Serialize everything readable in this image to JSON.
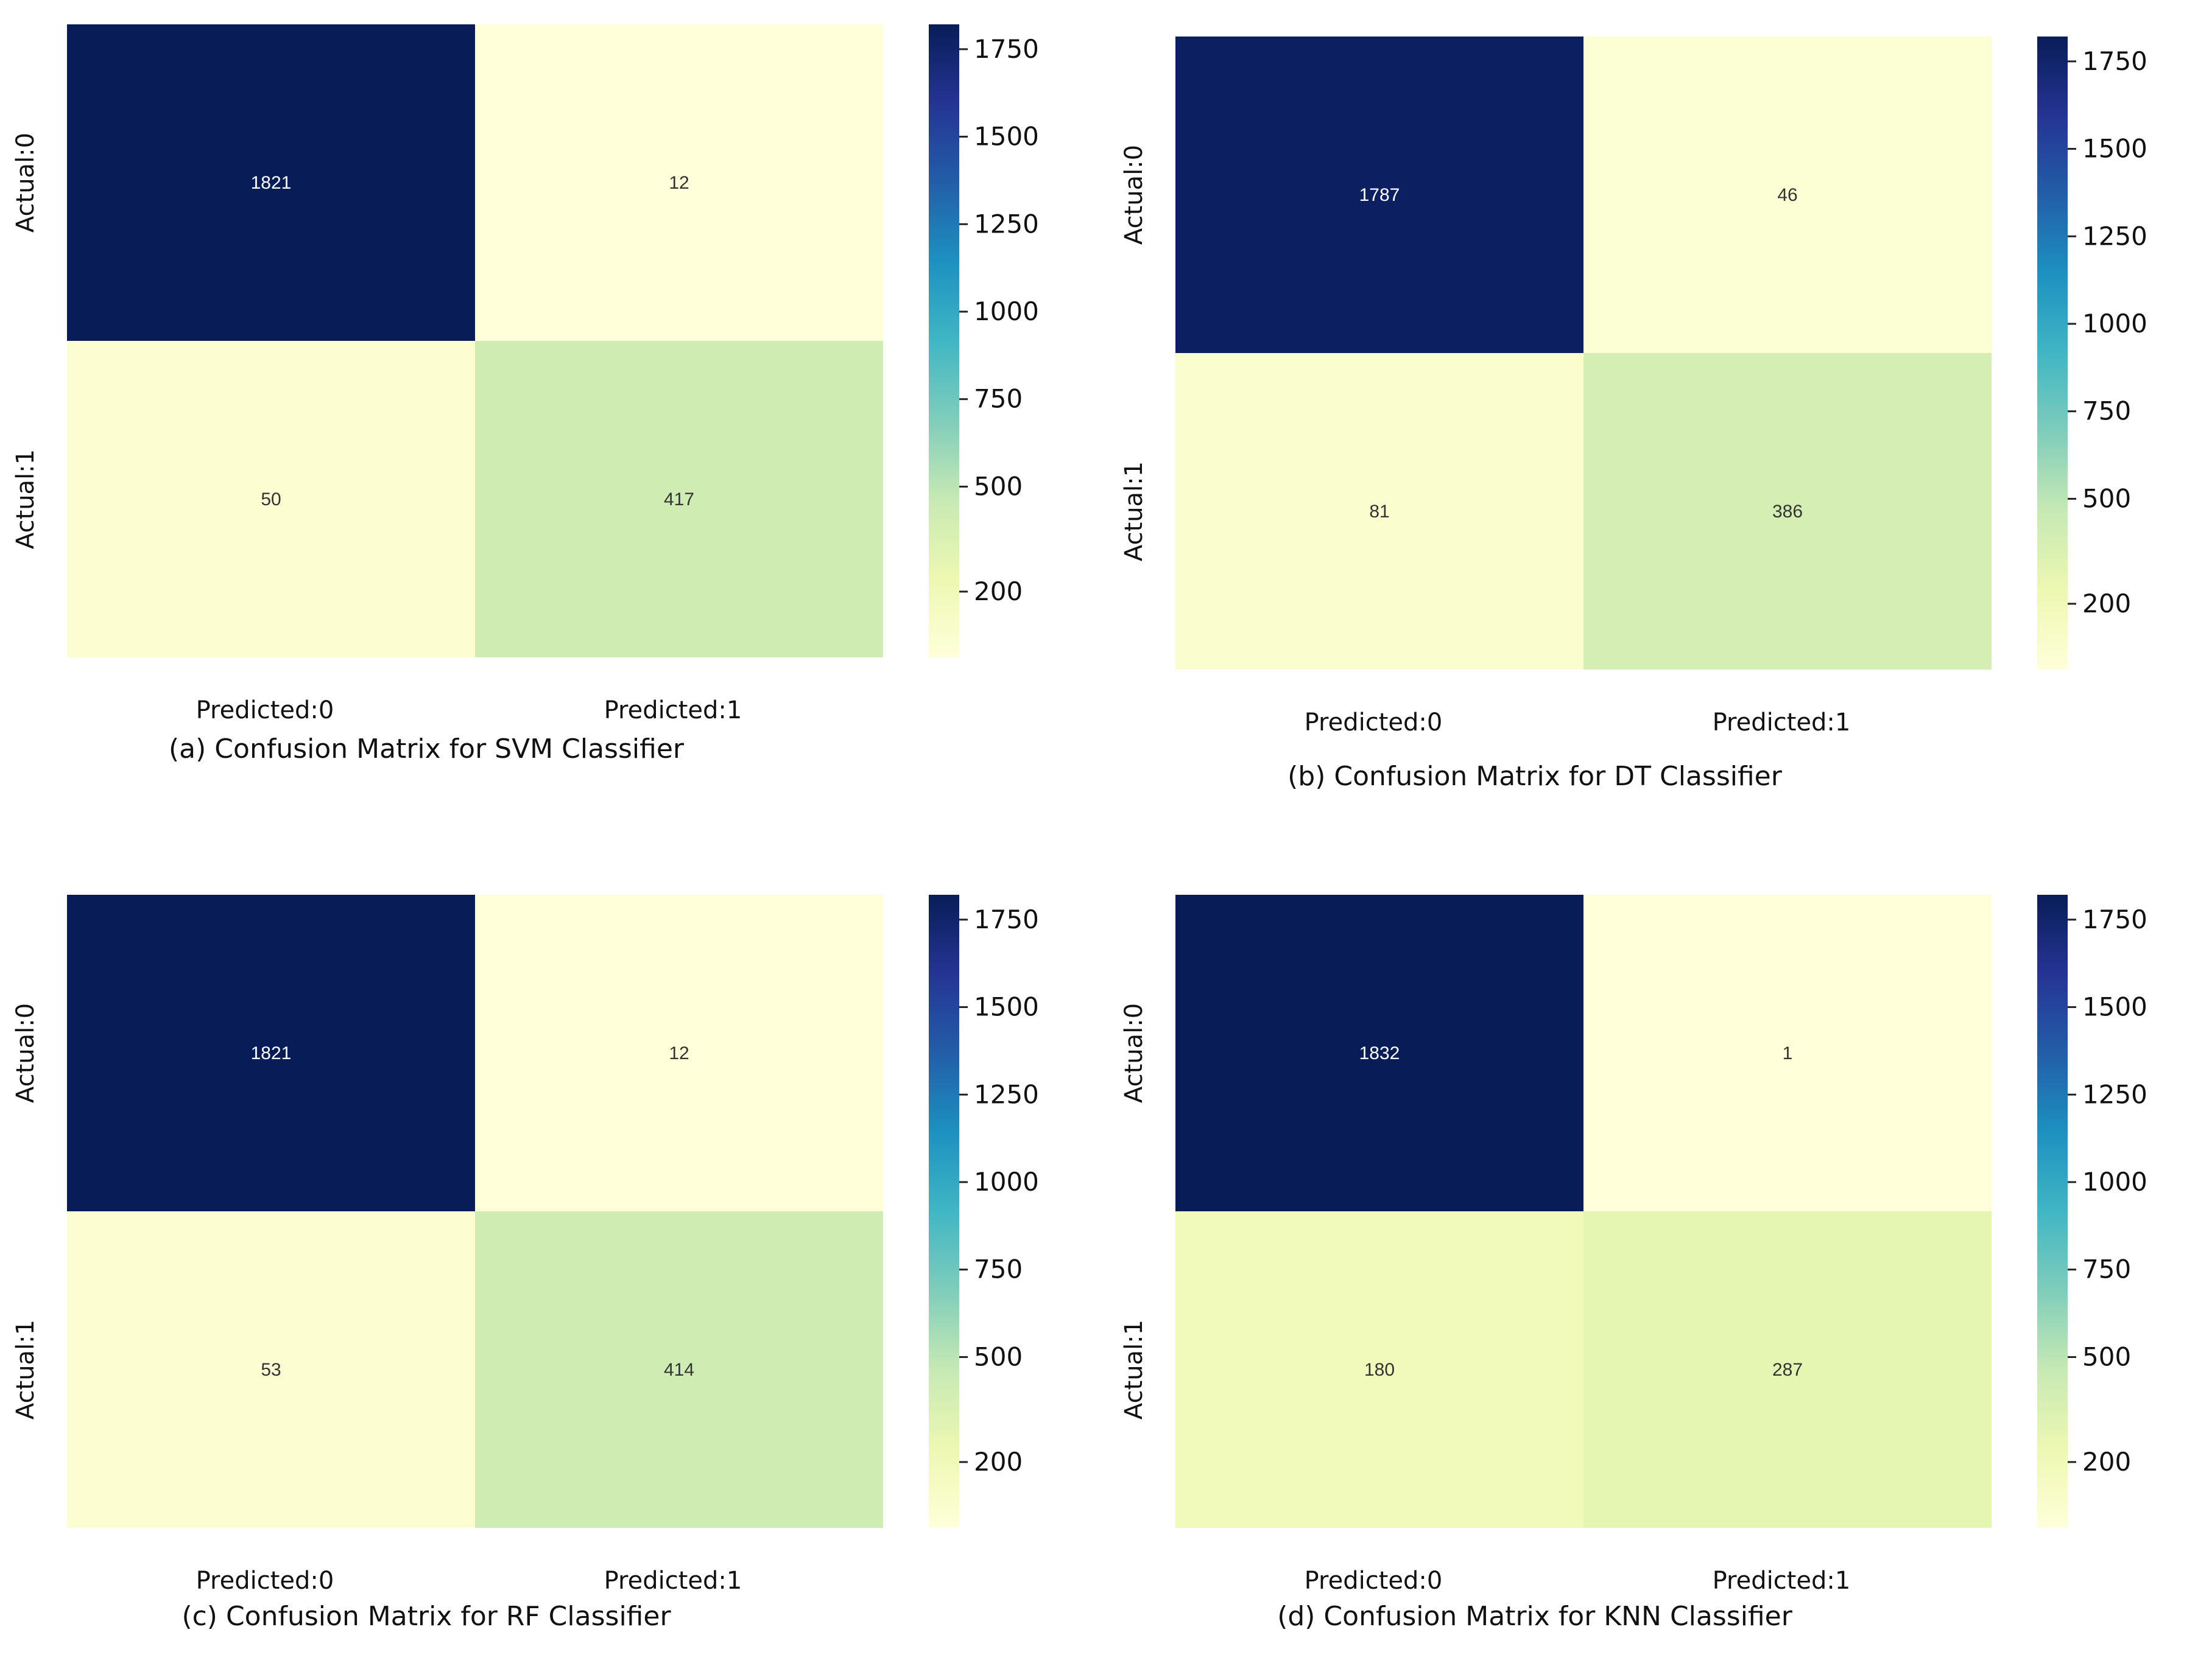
{
  "colormap": {
    "name": "YlGnBu",
    "vmin": 12,
    "vmax": 1821,
    "stops": [
      [
        0.0,
        "#ffffd9"
      ],
      [
        0.125,
        "#edf8b1"
      ],
      [
        0.25,
        "#c7e9b4"
      ],
      [
        0.375,
        "#7fcdbb"
      ],
      [
        0.5,
        "#41b6c4"
      ],
      [
        0.625,
        "#1d91c0"
      ],
      [
        0.75,
        "#225ea8"
      ],
      [
        0.875,
        "#253494"
      ],
      [
        1.0,
        "#081d58"
      ]
    ]
  },
  "chart_data": [
    {
      "type": "heatmap",
      "title": "(a) Confusion Matrix for SVM Classifier",
      "row_labels": [
        "Actual:0",
        "Actual:1"
      ],
      "col_labels": [
        "Predicted:0",
        "Predicted:1"
      ],
      "values": [
        [
          1821,
          12
        ],
        [
          50,
          417
        ]
      ],
      "colorbar_ticks": [
        1750,
        1500,
        1250,
        1000,
        750,
        500,
        200
      ]
    },
    {
      "type": "heatmap",
      "title": "(b) Confusion Matrix for DT Classifier",
      "row_labels": [
        "Actual:0",
        "Actual:1"
      ],
      "col_labels": [
        "Predicted:0",
        "Predicted:1"
      ],
      "values": [
        [
          1787,
          46
        ],
        [
          81,
          386
        ]
      ],
      "colorbar_ticks": [
        1750,
        1500,
        1250,
        1000,
        750,
        500,
        200
      ]
    },
    {
      "type": "heatmap",
      "title": "(c) Confusion Matrix for RF Classifier",
      "row_labels": [
        "Actual:0",
        "Actual:1"
      ],
      "col_labels": [
        "Predicted:0",
        "Predicted:1"
      ],
      "values": [
        [
          1821,
          12
        ],
        [
          53,
          414
        ]
      ],
      "colorbar_ticks": [
        1750,
        1500,
        1250,
        1000,
        750,
        500,
        200
      ]
    },
    {
      "type": "heatmap",
      "title": "(d) Confusion Matrix for KNN Classifier",
      "row_labels": [
        "Actual:0",
        "Actual:1"
      ],
      "col_labels": [
        "Predicted:0",
        "Predicted:1"
      ],
      "values": [
        [
          1832,
          1
        ],
        [
          180,
          287
        ]
      ],
      "colorbar_ticks": [
        1750,
        1500,
        1250,
        1000,
        750,
        500,
        200
      ]
    }
  ]
}
